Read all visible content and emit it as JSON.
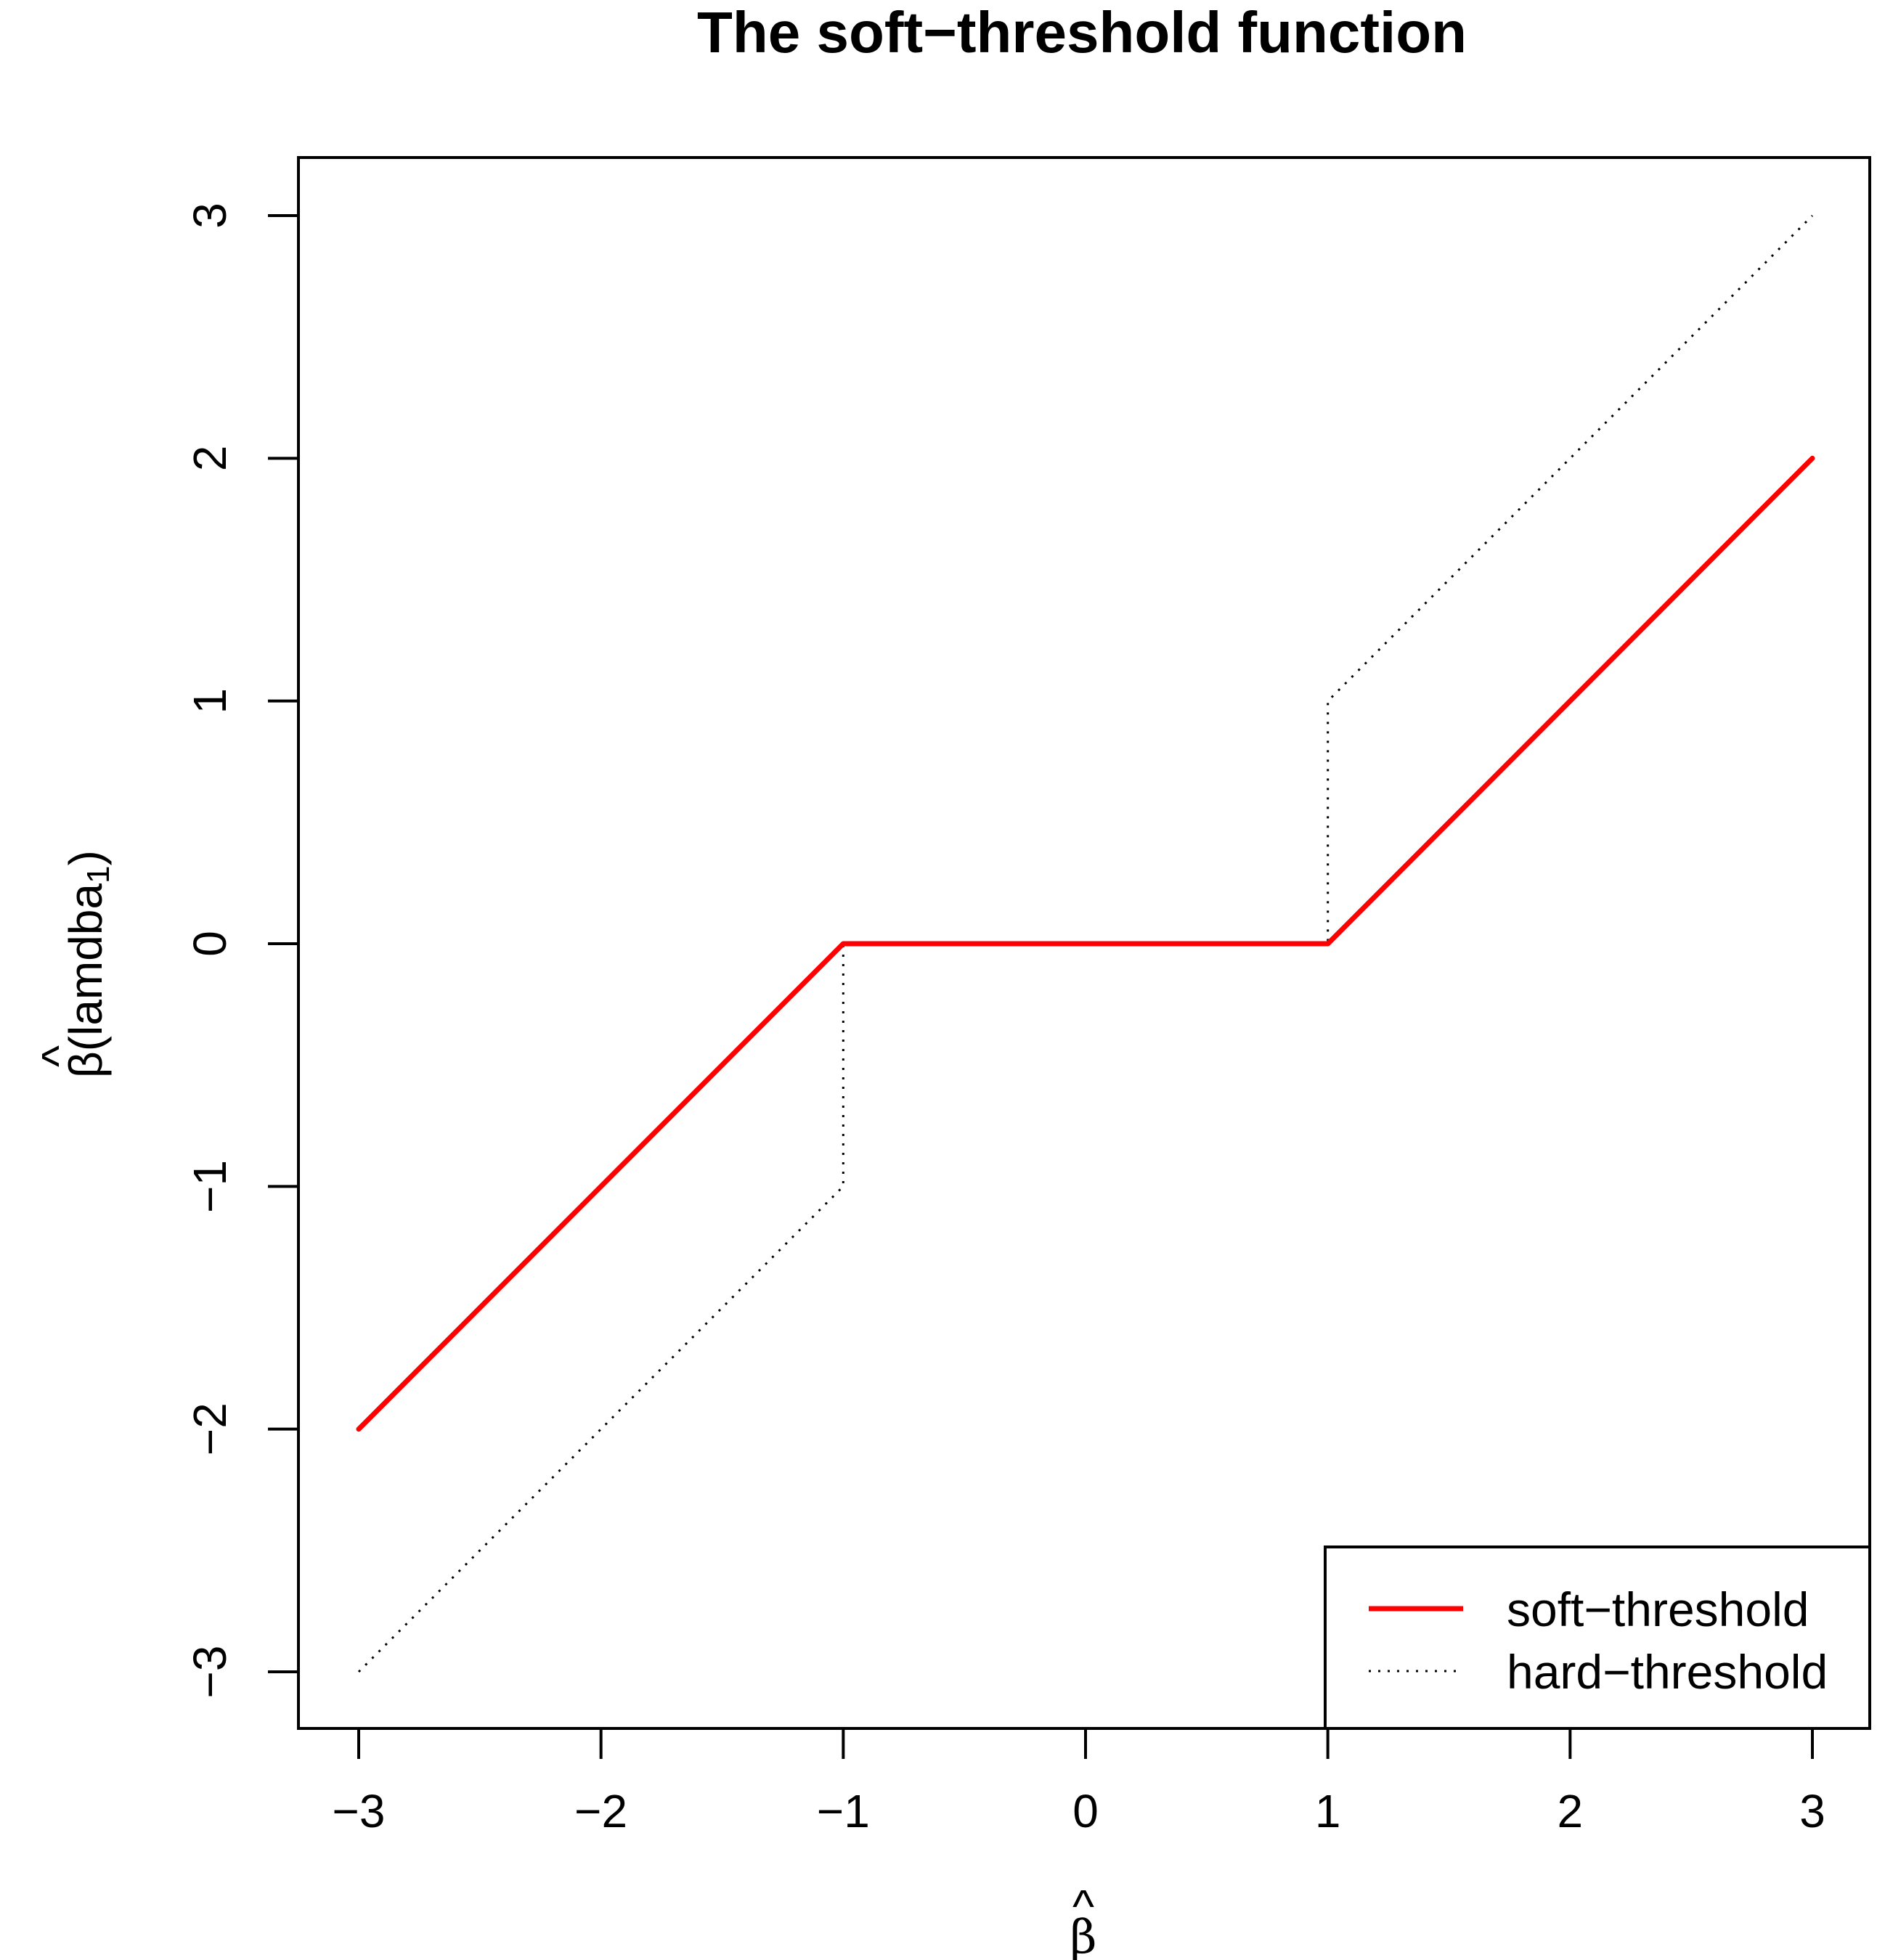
{
  "chart_data": {
    "type": "line",
    "title": "The soft−threshold function",
    "xlabel": "β",
    "xlabel_accent": "^",
    "ylabel": "β(lamdba",
    "ylabel_accent": "^",
    "ylabel_subscript": "1",
    "ylabel_close": ")",
    "xlim": [
      -3,
      3
    ],
    "ylim": [
      -3,
      3
    ],
    "x_ticks": [
      -3,
      -2,
      -1,
      0,
      1,
      2,
      3
    ],
    "x_tick_labels": [
      "−3",
      "−2",
      "−1",
      "0",
      "1",
      "2",
      "3"
    ],
    "y_ticks": [
      -3,
      -2,
      -1,
      0,
      1,
      2,
      3
    ],
    "y_tick_labels": [
      "−3",
      "−2",
      "−1",
      "0",
      "1",
      "2",
      "3"
    ],
    "grid": false,
    "legend_position": "bottom-right",
    "series": [
      {
        "name": "soft−threshold",
        "color": "#ff0000",
        "style": "solid",
        "x": [
          -3,
          -1,
          1,
          3
        ],
        "y": [
          -2,
          0,
          0,
          2
        ]
      },
      {
        "name": "hard−threshold",
        "color": "#000000",
        "style": "dotted",
        "x": [
          -3,
          -1,
          -1,
          1,
          1,
          3
        ],
        "y": [
          -3,
          -1,
          0,
          0,
          1,
          3
        ]
      }
    ]
  }
}
